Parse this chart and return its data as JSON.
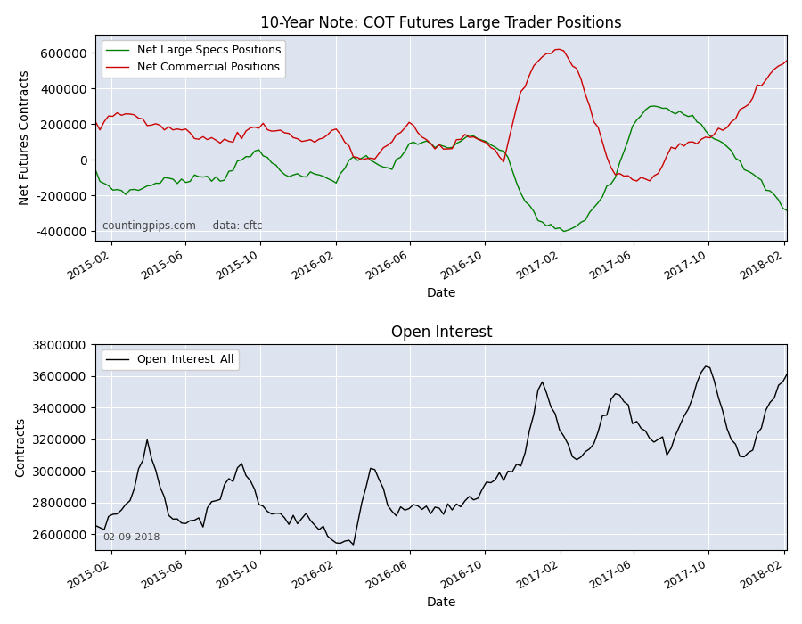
{
  "title1": "10-Year Note: COT Futures Large Trader Positions",
  "title2": "Open Interest",
  "ylabel1": "Net Futures Contracts",
  "ylabel2": "Contracts",
  "xlabel": "Date",
  "legend1": [
    "Net Large Specs Positions",
    "Net Commercial Positions"
  ],
  "legend2": [
    "Open_Interest_All"
  ],
  "color_specs": "#008000",
  "color_commercial": "#cc0000",
  "color_oi": "#000000",
  "watermark": "countingpips.com     data: cftc",
  "date_label": "02-09-2018",
  "bg_color": "#dde3ef",
  "fig_bg": "#ffffff",
  "start_date": "2015-01-06",
  "end_date": "2018-02-09",
  "ylim1": [
    -450000,
    700000
  ],
  "ylim2": [
    2500000,
    3800000
  ]
}
